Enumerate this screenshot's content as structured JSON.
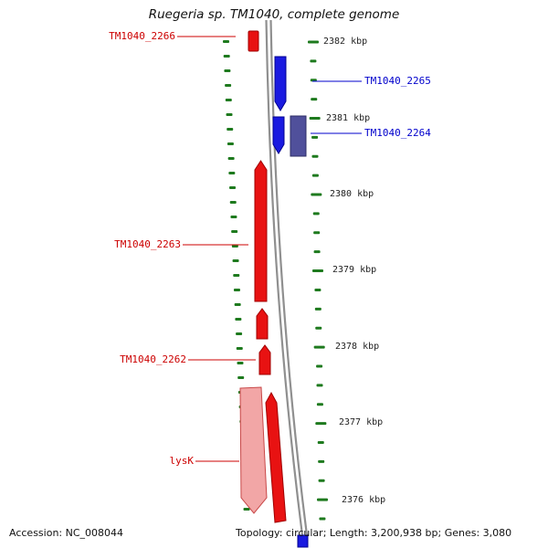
{
  "title": "Ruegeria sp. TM1040, complete genome",
  "genes": [
    {
      "name": "TM1040_2266",
      "color": "red"
    },
    {
      "name": "TM1040_2265",
      "color": "blue"
    },
    {
      "name": "TM1040_2264",
      "color": "blue"
    },
    {
      "name": "TM1040_2263",
      "color": "red"
    },
    {
      "name": "TM1040_2262",
      "color": "red"
    },
    {
      "name": "lysK",
      "color": "red"
    }
  ],
  "ruler_marks": [
    "2382 kbp",
    "2381 kbp",
    "2380 kbp",
    "2379 kbp",
    "2378 kbp",
    "2377 kbp",
    "2376 kbp"
  ],
  "status_bar": {
    "accession": "Accession: NC_008044",
    "summary": "Topology: circular; Length: 3,200,938 bp; Genes: 3,080"
  },
  "colors": {
    "forward_gene": "#1a1ae0",
    "reverse_gene": "#e81212",
    "operon_box": "#50509b",
    "highlight_gene": "#f2a6a6",
    "tick": "#1e7a1e",
    "backbone": "#8f8f8f",
    "label_red": "#cc0000",
    "label_blue": "#0000cc"
  }
}
